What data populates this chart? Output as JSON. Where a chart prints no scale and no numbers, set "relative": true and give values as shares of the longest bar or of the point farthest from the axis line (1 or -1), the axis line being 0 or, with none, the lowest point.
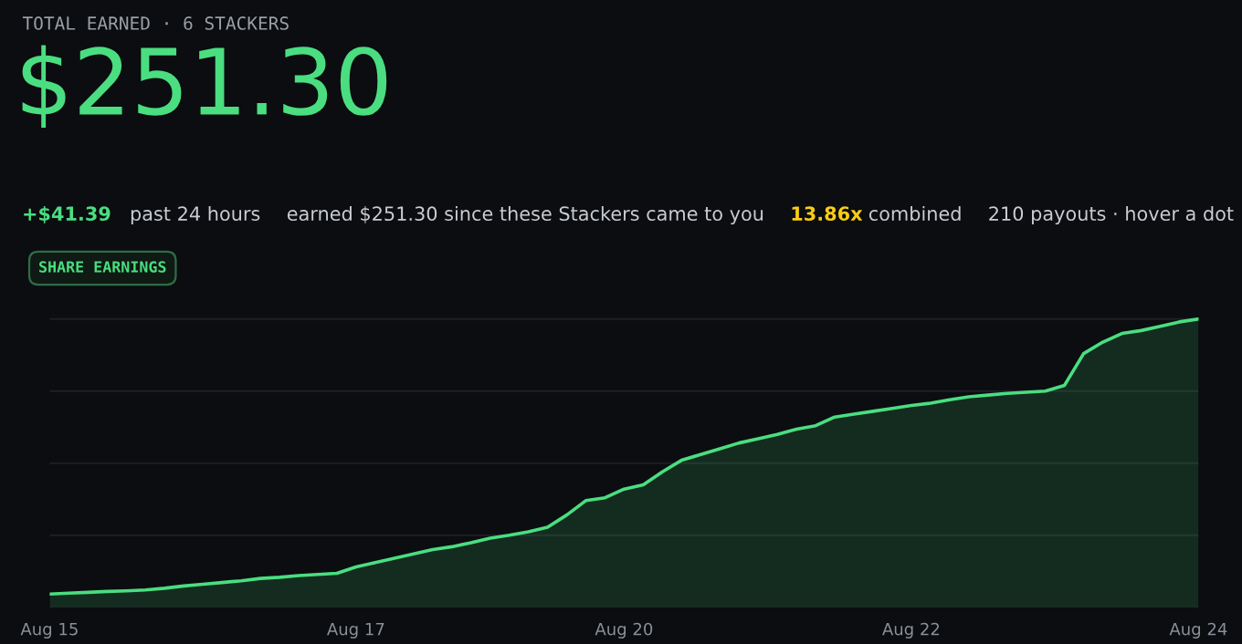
{
  "chart_data": {
    "type": "area",
    "title": "TOTAL EARNED · 6 STACKERS",
    "subtitle": "$251.30",
    "annotations": [
      "+$41.39",
      "past 24 hours",
      "earned $251.30 since these Stackers came to you",
      "13.86x",
      "combined",
      "210 payouts · hover a dot",
      "SHARE EARNINGS"
    ],
    "categories": [
      "Aug 15",
      null,
      null,
      null,
      null,
      null,
      null,
      null,
      null,
      null,
      null,
      null,
      null,
      null,
      null,
      null,
      "Aug 17",
      null,
      null,
      null,
      null,
      null,
      null,
      null,
      null,
      null,
      null,
      null,
      null,
      null,
      "Aug 20",
      null,
      null,
      null,
      null,
      null,
      null,
      null,
      null,
      null,
      null,
      null,
      null,
      null,
      null,
      "Aug 22",
      null,
      null,
      null,
      null,
      null,
      null,
      null,
      null,
      null,
      null,
      null,
      null,
      null,
      null,
      "Aug 24"
    ],
    "series": [
      {
        "color": "#4ade80",
        "values": [
          0.046,
          0.049,
          0.052,
          0.055,
          0.057,
          0.06,
          0.066,
          0.074,
          0.08,
          0.086,
          0.092,
          0.1,
          0.104,
          0.11,
          0.114,
          0.118,
          0.14,
          0.155,
          0.17,
          0.185,
          0.2,
          0.21,
          0.224,
          0.24,
          0.25,
          0.262,
          0.278,
          0.32,
          0.37,
          0.38,
          0.41,
          0.425,
          0.47,
          0.51,
          0.53,
          0.55,
          0.57,
          0.585,
          0.6,
          0.618,
          0.63,
          0.66,
          0.67,
          0.68,
          0.69,
          0.7,
          0.708,
          0.72,
          0.73,
          0.736,
          0.742,
          0.746,
          0.75,
          0.77,
          0.88,
          0.92,
          0.95,
          0.96,
          0.975,
          0.99,
          1.0
        ]
      }
    ],
    "relative": true,
    "grid": "y",
    "tick_labels": "x"
  }
}
